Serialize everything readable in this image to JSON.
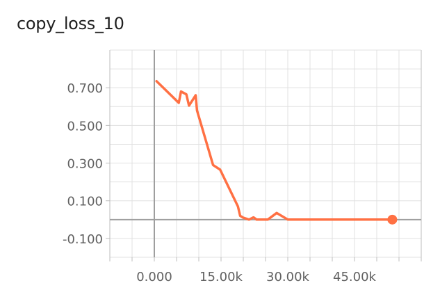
{
  "chart_data": {
    "type": "line",
    "title": "copy_loss_10",
    "xlabel": "",
    "ylabel": "",
    "xlim": [
      -10000,
      60000
    ],
    "ylim": [
      -0.2,
      0.9
    ],
    "x_ticks": [
      0,
      15000,
      30000,
      45000
    ],
    "x_tick_labels": [
      "0.000",
      "15.00k",
      "30.00k",
      "45.00k"
    ],
    "y_ticks": [
      0.7,
      0.5,
      0.3,
      0.1,
      -0.1
    ],
    "y_tick_labels": [
      "0.700",
      "0.500",
      "0.300",
      "0.100",
      "-0.100"
    ],
    "grid": true,
    "series": [
      {
        "color": "#ff7043",
        "x": [
          500,
          5500,
          6000,
          7200,
          7800,
          9300,
          9600,
          13200,
          14800,
          18800,
          19300,
          20000,
          21300,
          22300,
          23000,
          25500,
          27500,
          30000,
          53000,
          53500
        ],
        "y": [
          0.735,
          0.62,
          0.68,
          0.665,
          0.605,
          0.66,
          0.58,
          0.29,
          0.265,
          0.07,
          0.02,
          0.01,
          0.0,
          0.012,
          0.0,
          0.0,
          0.035,
          0.0,
          0.0,
          0.0
        ]
      }
    ]
  }
}
